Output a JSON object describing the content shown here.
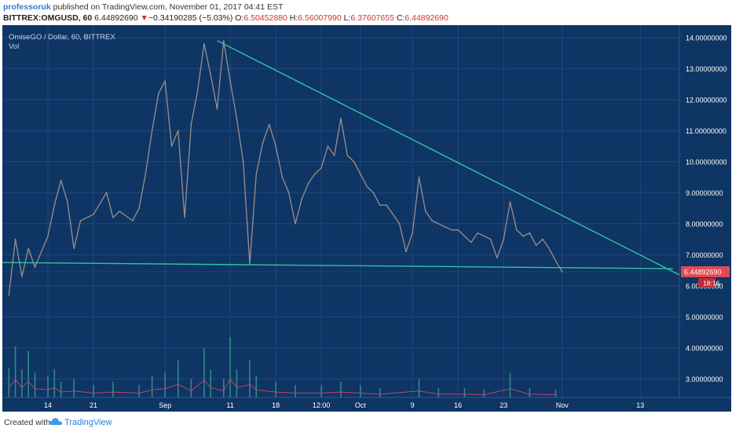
{
  "header": {
    "author": "professoruk",
    "published_text": "published on TradingView.com, November 01, 2017 04:41 EST",
    "quote_symbol": "BITTREX:OMGUSD, 60",
    "quote_last": "6.44892690",
    "quote_arrow": "▼",
    "quote_change": "−0.34190285 (−5.03%)",
    "quote_o_label": "O:",
    "quote_o": "6.50452880",
    "quote_h_label": "H:",
    "quote_h": "6.56007990",
    "quote_l_label": "L:",
    "quote_l": "6.37607655",
    "quote_c_label": "C:",
    "quote_c": "6.44892690"
  },
  "legend": {
    "title": "OmiseGO / Dollar, 60, BITTREX",
    "volume": "Vol"
  },
  "price_tag": {
    "value": "6.44892690",
    "countdown": "18:16"
  },
  "footer": {
    "created_with": "Created with",
    "brand": "TradingView"
  },
  "colors": {
    "background": "#0e3564",
    "grid": "#1f4a7e",
    "axis_text": "#ffffff",
    "price_line": "#9c8f8a",
    "trendline": "#2fc4a2",
    "volume_bars": "#2f8a86",
    "volume_ma": "#c0446a",
    "price_tag": "#e04a55"
  },
  "chart_data": {
    "type": "line",
    "title": "OmiseGO / Dollar, 60, BITTREX",
    "y_ticks": [
      "14.00000000",
      "13.00000000",
      "12.00000000",
      "11.00000000",
      "10.00000000",
      "9.00000000",
      "8.00000000",
      "7.00000000",
      "6.00000000",
      "5.00000000",
      "4.00000000",
      "3.00000000"
    ],
    "y_tick_values": [
      14,
      13,
      12,
      11,
      10,
      9,
      8,
      7,
      6,
      5,
      4,
      3
    ],
    "x_ticks": [
      "14",
      "21",
      "Sep",
      "11",
      "18",
      "12:00",
      "Oct",
      "9",
      "16",
      "23",
      "Nov",
      "13"
    ],
    "x_tick_dates": [
      "2017-08-14",
      "2017-08-21",
      "2017-09-01",
      "2017-09-11",
      "2017-09-18",
      "2017-09-25",
      "2017-10-01",
      "2017-10-09",
      "2017-10-16",
      "2017-10-23",
      "2017-11-01",
      "2017-11-13"
    ],
    "ylim": [
      2.4,
      14.4
    ],
    "xlim": [
      "2017-08-07",
      "2017-11-19"
    ],
    "grid": true,
    "series": [
      {
        "values": [
          [
            "2017-08-08",
            5.7
          ],
          [
            "2017-08-09",
            7.5
          ],
          [
            "2017-08-10",
            6.3
          ],
          [
            "2017-08-11",
            7.2
          ],
          [
            "2017-08-12",
            6.6
          ],
          [
            "2017-08-14",
            7.6
          ],
          [
            "2017-08-15",
            8.6
          ],
          [
            "2017-08-16",
            9.4
          ],
          [
            "2017-08-17",
            8.7
          ],
          [
            "2017-08-18",
            7.2
          ],
          [
            "2017-08-19",
            8.1
          ],
          [
            "2017-08-21",
            8.3
          ],
          [
            "2017-08-23",
            9.0
          ],
          [
            "2017-08-24",
            8.2
          ],
          [
            "2017-08-25",
            8.4
          ],
          [
            "2017-08-27",
            8.1
          ],
          [
            "2017-08-28",
            8.5
          ],
          [
            "2017-08-29",
            9.6
          ],
          [
            "2017-08-30",
            11.0
          ],
          [
            "2017-08-31",
            12.2
          ],
          [
            "2017-09-01",
            12.6
          ],
          [
            "2017-09-02",
            10.5
          ],
          [
            "2017-09-03",
            11.0
          ],
          [
            "2017-09-04",
            8.2
          ],
          [
            "2017-09-05",
            11.2
          ],
          [
            "2017-09-06",
            12.3
          ],
          [
            "2017-09-07",
            13.8
          ],
          [
            "2017-09-08",
            12.8
          ],
          [
            "2017-09-09",
            11.7
          ],
          [
            "2017-09-10",
            13.9
          ],
          [
            "2017-09-11",
            12.6
          ],
          [
            "2017-09-12",
            11.4
          ],
          [
            "2017-09-13",
            10.0
          ],
          [
            "2017-09-14",
            6.7
          ],
          [
            "2017-09-15",
            9.6
          ],
          [
            "2017-09-16",
            10.6
          ],
          [
            "2017-09-17",
            11.2
          ],
          [
            "2017-09-18",
            10.5
          ],
          [
            "2017-09-19",
            9.5
          ],
          [
            "2017-09-20",
            9.0
          ],
          [
            "2017-09-21",
            8.0
          ],
          [
            "2017-09-22",
            8.8
          ],
          [
            "2017-09-23",
            9.3
          ],
          [
            "2017-09-24",
            9.6
          ],
          [
            "2017-09-25",
            9.8
          ],
          [
            "2017-09-26",
            10.5
          ],
          [
            "2017-09-27",
            10.2
          ],
          [
            "2017-09-28",
            11.4
          ],
          [
            "2017-09-29",
            10.2
          ],
          [
            "2017-09-30",
            10.0
          ],
          [
            "2017-10-01",
            9.6
          ],
          [
            "2017-10-02",
            9.2
          ],
          [
            "2017-10-03",
            9.0
          ],
          [
            "2017-10-04",
            8.6
          ],
          [
            "2017-10-05",
            8.6
          ],
          [
            "2017-10-06",
            8.3
          ],
          [
            "2017-10-07",
            8.0
          ],
          [
            "2017-10-08",
            7.1
          ],
          [
            "2017-10-09",
            7.7
          ],
          [
            "2017-10-10",
            9.5
          ],
          [
            "2017-10-11",
            8.4
          ],
          [
            "2017-10-12",
            8.1
          ],
          [
            "2017-10-13",
            8.0
          ],
          [
            "2017-10-14",
            7.9
          ],
          [
            "2017-10-15",
            7.8
          ],
          [
            "2017-10-16",
            7.8
          ],
          [
            "2017-10-17",
            7.6
          ],
          [
            "2017-10-18",
            7.4
          ],
          [
            "2017-10-19",
            7.7
          ],
          [
            "2017-10-20",
            7.6
          ],
          [
            "2017-10-21",
            7.5
          ],
          [
            "2017-10-22",
            6.9
          ],
          [
            "2017-10-23",
            7.5
          ],
          [
            "2017-10-24",
            8.7
          ],
          [
            "2017-10-25",
            7.8
          ],
          [
            "2017-10-26",
            7.6
          ],
          [
            "2017-10-27",
            7.7
          ],
          [
            "2017-10-28",
            7.3
          ],
          [
            "2017-10-29",
            7.5
          ],
          [
            "2017-10-30",
            7.2
          ],
          [
            "2017-10-31",
            6.8
          ],
          [
            "2017-11-01",
            6.45
          ]
        ]
      }
    ],
    "volume": [
      [
        "2017-08-08",
        3.35
      ],
      [
        "2017-08-09",
        4.05
      ],
      [
        "2017-08-10",
        3.3
      ],
      [
        "2017-08-11",
        3.9
      ],
      [
        "2017-08-12",
        3.2
      ],
      [
        "2017-08-14",
        3.1
      ],
      [
        "2017-08-15",
        3.3
      ],
      [
        "2017-08-16",
        2.9
      ],
      [
        "2017-08-18",
        3.0
      ],
      [
        "2017-08-21",
        2.8
      ],
      [
        "2017-08-24",
        2.9
      ],
      [
        "2017-08-28",
        2.8
      ],
      [
        "2017-08-30",
        3.1
      ],
      [
        "2017-09-01",
        3.2
      ],
      [
        "2017-09-03",
        3.6
      ],
      [
        "2017-09-05",
        3.0
      ],
      [
        "2017-09-07",
        4.0
      ],
      [
        "2017-09-08",
        3.3
      ],
      [
        "2017-09-10",
        3.0
      ],
      [
        "2017-09-11",
        4.35
      ],
      [
        "2017-09-12",
        3.3
      ],
      [
        "2017-09-14",
        3.6
      ],
      [
        "2017-09-15",
        3.1
      ],
      [
        "2017-09-18",
        2.9
      ],
      [
        "2017-09-21",
        2.8
      ],
      [
        "2017-09-25",
        2.8
      ],
      [
        "2017-09-28",
        2.9
      ],
      [
        "2017-10-01",
        2.8
      ],
      [
        "2017-10-04",
        2.7
      ],
      [
        "2017-10-10",
        3.0
      ],
      [
        "2017-10-13",
        2.7
      ],
      [
        "2017-10-17",
        2.7
      ],
      [
        "2017-10-20",
        2.65
      ],
      [
        "2017-10-24",
        3.2
      ],
      [
        "2017-10-27",
        2.7
      ],
      [
        "2017-10-31",
        2.65
      ]
    ],
    "trendlines": [
      {
        "from": [
          "2017-09-09",
          13.9
        ],
        "to": [
          "2017-11-19",
          6.35
        ]
      },
      {
        "from": [
          "2017-08-07",
          6.75
        ],
        "to": [
          "2017-11-18",
          6.55
        ]
      }
    ]
  }
}
